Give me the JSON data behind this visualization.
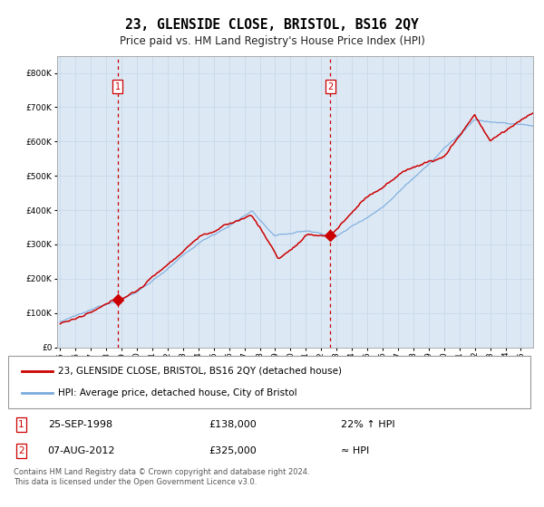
{
  "title": "23, GLENSIDE CLOSE, BRISTOL, BS16 2QY",
  "subtitle": "Price paid vs. HM Land Registry's House Price Index (HPI)",
  "legend_line1": "23, GLENSIDE CLOSE, BRISTOL, BS16 2QY (detached house)",
  "legend_line2": "HPI: Average price, detached house, City of Bristol",
  "sale1_date": "25-SEP-1998",
  "sale1_price": 138000,
  "sale1_note": "22% ↑ HPI",
  "sale2_date": "07-AUG-2012",
  "sale2_price": 325000,
  "sale2_note": "≈ HPI",
  "footer": "Contains HM Land Registry data © Crown copyright and database right 2024.\nThis data is licensed under the Open Government Licence v3.0.",
  "bg_color": "#dce9f5",
  "hpi_color": "#7aaadd",
  "price_color": "#cc0000",
  "marker_color": "#cc0000",
  "vline_color": "#cc0000",
  "grid_color": "#c8d8e8",
  "sale1_x": 1998.73,
  "sale2_x": 2012.59,
  "ylim": [
    0,
    850000
  ],
  "xlim_start": 1994.8,
  "xlim_end": 2025.8
}
